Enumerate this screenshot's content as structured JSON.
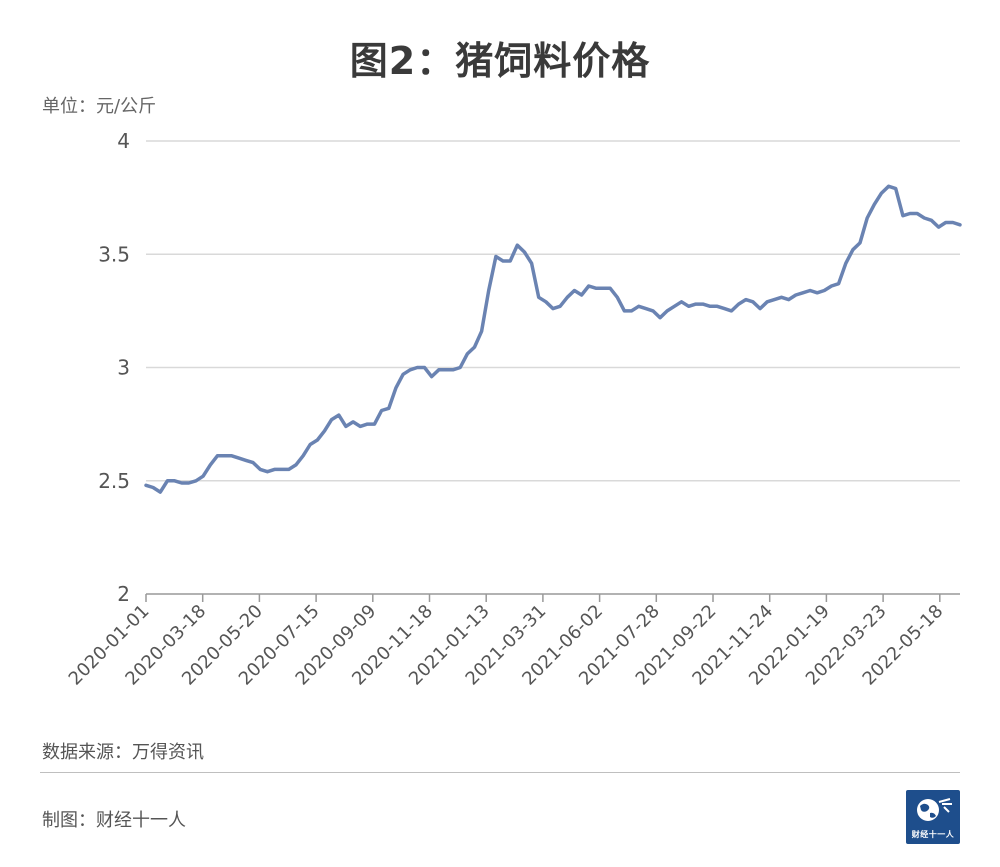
{
  "title": "图2：猪饲料价格",
  "unit_label": "单位：元/公斤",
  "source_label": "数据来源：万得资讯",
  "maker_label": "制图：财经十一人",
  "logo_text": "财经十一人",
  "colors": {
    "line": "#6a83b2",
    "grid": "#d9d9d9",
    "axis": "#999999",
    "logo_bg": "#1e4e8c"
  },
  "chart_data": {
    "type": "line",
    "title": "图2：猪饲料价格",
    "ylabel": "单位：元/公斤",
    "ylim": [
      2,
      4
    ],
    "y_ticks": [
      "2",
      "2.5",
      "3",
      "3.5",
      "4"
    ],
    "x_tick_labels": [
      "2020-01-01",
      "2020-03-18",
      "2020-05-20",
      "2020-07-15",
      "2020-09-09",
      "2020-11-18",
      "2021-01-13",
      "2021-03-31",
      "2021-06-02",
      "2021-07-28",
      "2021-09-22",
      "2021-11-24",
      "2022-01-19",
      "2022-03-23",
      "2022-05-18"
    ],
    "grid": "horizontal",
    "series": [
      {
        "values": [
          2.48,
          2.47,
          2.45,
          2.5,
          2.5,
          2.49,
          2.49,
          2.5,
          2.52,
          2.57,
          2.61,
          2.61,
          2.61,
          2.6,
          2.59,
          2.58,
          2.55,
          2.54,
          2.55,
          2.55,
          2.55,
          2.57,
          2.61,
          2.66,
          2.68,
          2.72,
          2.77,
          2.79,
          2.74,
          2.76,
          2.74,
          2.75,
          2.75,
          2.81,
          2.82,
          2.91,
          2.97,
          2.99,
          3.0,
          3.0,
          2.96,
          2.99,
          2.99,
          2.99,
          3.0,
          3.06,
          3.09,
          3.16,
          3.34,
          3.49,
          3.47,
          3.47,
          3.54,
          3.51,
          3.46,
          3.31,
          3.29,
          3.26,
          3.27,
          3.31,
          3.34,
          3.32,
          3.36,
          3.35,
          3.35,
          3.35,
          3.31,
          3.25,
          3.25,
          3.27,
          3.26,
          3.25,
          3.22,
          3.25,
          3.27,
          3.29,
          3.27,
          3.28,
          3.28,
          3.27,
          3.27,
          3.26,
          3.25,
          3.28,
          3.3,
          3.29,
          3.26,
          3.29,
          3.3,
          3.31,
          3.3,
          3.32,
          3.33,
          3.34,
          3.33,
          3.34,
          3.36,
          3.37,
          3.46,
          3.52,
          3.55,
          3.66,
          3.72,
          3.77,
          3.8,
          3.79,
          3.67,
          3.68,
          3.68,
          3.66,
          3.65,
          3.62,
          3.64,
          3.64,
          3.63
        ]
      }
    ]
  }
}
